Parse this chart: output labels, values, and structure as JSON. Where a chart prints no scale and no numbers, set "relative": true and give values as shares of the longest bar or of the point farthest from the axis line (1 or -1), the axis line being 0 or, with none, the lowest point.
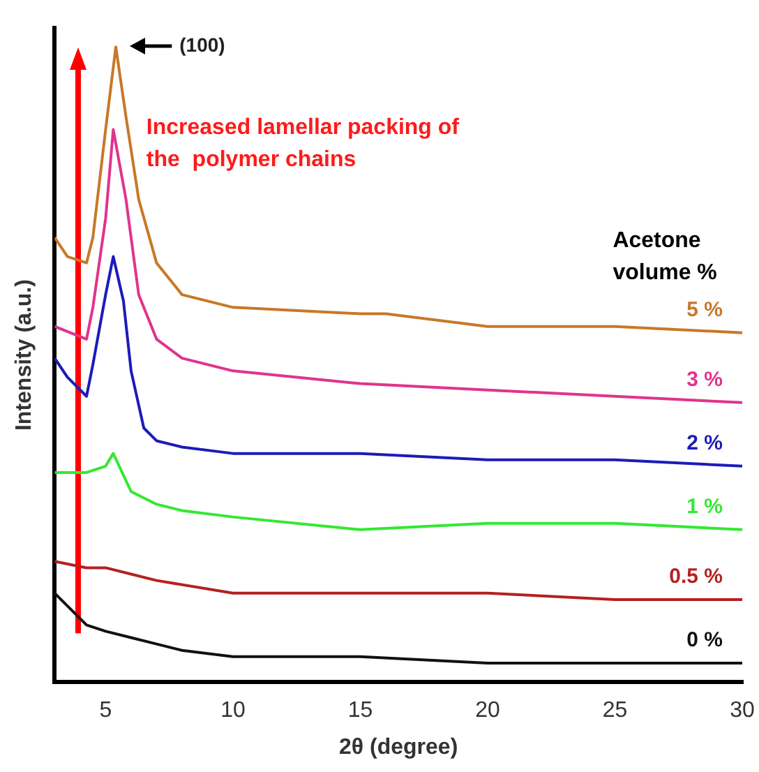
{
  "chart_data": {
    "type": "line",
    "relative": true,
    "xlabel": "2θ (degree)",
    "ylabel": "Intensity (a.u.)",
    "legend_title": "Acetone volume %",
    "legend": false,
    "grid": false,
    "marker": "none",
    "xlim": [
      3,
      30
    ],
    "xticks": [
      5,
      10,
      15,
      20,
      25,
      30
    ],
    "annotations": [
      "(100)",
      "Increased lamellar packing of the  polymer chains"
    ],
    "series": [
      {
        "name": "0 %",
        "color": "#111111",
        "x": [
          3,
          4.25,
          5,
          6,
          7,
          8,
          10,
          15,
          20,
          25,
          30
        ],
        "values": [
          0.14,
          0.09,
          0.08,
          0.07,
          0.06,
          0.05,
          0.04,
          0.04,
          0.03,
          0.03,
          0.03
        ]
      },
      {
        "name": "0.5 %",
        "color": "#b52020",
        "x": [
          3,
          4.25,
          5,
          6,
          7,
          10,
          15,
          20,
          25,
          30
        ],
        "values": [
          0.19,
          0.18,
          0.18,
          0.17,
          0.16,
          0.14,
          0.14,
          0.14,
          0.13,
          0.13
        ]
      },
      {
        "name": "1 %",
        "color": "#33e833",
        "x": [
          3,
          4.25,
          5,
          5.3,
          6,
          7,
          8,
          10,
          15,
          20,
          25,
          30
        ],
        "values": [
          0.33,
          0.33,
          0.34,
          0.36,
          0.3,
          0.28,
          0.27,
          0.26,
          0.24,
          0.25,
          0.25,
          0.24
        ]
      },
      {
        "name": "2 %",
        "color": "#1c1cb8",
        "x": [
          3,
          3.5,
          4.25,
          4.5,
          5,
          5.3,
          5.7,
          6,
          6.5,
          7,
          8,
          10,
          15,
          20,
          25,
          30
        ],
        "values": [
          0.51,
          0.48,
          0.45,
          0.5,
          0.61,
          0.67,
          0.6,
          0.49,
          0.4,
          0.38,
          0.37,
          0.36,
          0.36,
          0.35,
          0.35,
          0.34
        ]
      },
      {
        "name": "3 %",
        "color": "#e0348c",
        "x": [
          3,
          4.25,
          4.5,
          5,
          5.3,
          5.8,
          6.3,
          7,
          8,
          10,
          15,
          20,
          25,
          30
        ],
        "values": [
          0.56,
          0.54,
          0.59,
          0.73,
          0.87,
          0.76,
          0.61,
          0.54,
          0.51,
          0.49,
          0.47,
          0.46,
          0.45,
          0.44
        ]
      },
      {
        "name": "5 %",
        "color": "#c87828",
        "x": [
          3,
          3.5,
          4.25,
          4.5,
          5,
          5.4,
          5.8,
          6.3,
          7,
          8,
          10,
          15,
          16,
          20,
          25,
          30
        ],
        "values": [
          0.7,
          0.67,
          0.66,
          0.7,
          0.87,
          1,
          0.89,
          0.76,
          0.66,
          0.61,
          0.59,
          0.58,
          0.58,
          0.56,
          0.56,
          0.55
        ]
      }
    ]
  }
}
